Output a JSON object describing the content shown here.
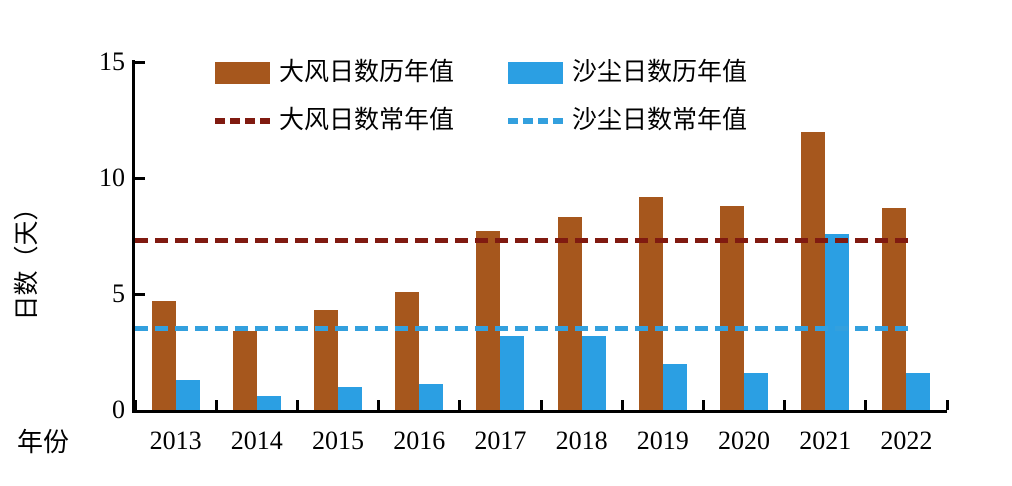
{
  "chart_data": {
    "type": "bar",
    "title": "",
    "categories": [
      "2013",
      "2014",
      "2015",
      "2016",
      "2017",
      "2018",
      "2019",
      "2020",
      "2021",
      "2022"
    ],
    "series": [
      {
        "key": "wind-yearly",
        "name": "大风日数历年值",
        "render": "bar",
        "color": "#A6571D",
        "values": [
          4.7,
          3.4,
          4.3,
          5.1,
          7.7,
          8.3,
          9.2,
          8.8,
          12.0,
          8.7
        ]
      },
      {
        "key": "dust-yearly",
        "name": "沙尘日数历年值",
        "render": "bar",
        "color": "#2B9FE3",
        "values": [
          1.3,
          0.6,
          1.0,
          1.1,
          3.2,
          3.2,
          2.0,
          1.6,
          7.6,
          1.6
        ]
      },
      {
        "key": "wind-normal",
        "name": "大风日数常年值",
        "render": "dashed-line",
        "color": "#801A10",
        "value": 7.3
      },
      {
        "key": "dust-normal",
        "name": "沙尘日数常年值",
        "render": "dashed-line",
        "color": "#33A0DE",
        "value": 3.5
      }
    ],
    "xlabel": "年份",
    "ylabel": "日数（天）",
    "ylim": [
      0,
      15
    ],
    "yticks": [
      0,
      5,
      10,
      15
    ],
    "legend_position": "top",
    "grid": false
  },
  "colors": {
    "axis": "#000000",
    "background": "#FFFFFF"
  }
}
